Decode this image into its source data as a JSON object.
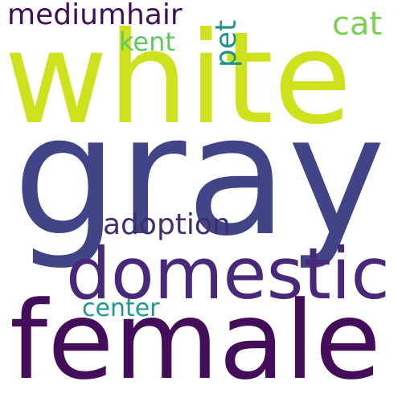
{
  "words": {
    "white": "white",
    "gray": "gray",
    "domestic": "domestic",
    "female": "female",
    "mediumhair": "mediumhair",
    "cat": "cat",
    "kent": "kent",
    "pet": "pet",
    "adoption": "adoption",
    "center": "center"
  },
  "colors": {
    "white": "#cde11d",
    "gray": "#414487",
    "domestic": "#482878",
    "female": "#440d59",
    "mediumhair": "#3e0f57",
    "cat": "#7ad151",
    "kent": "#5ec962",
    "pet": "#20928c",
    "adoption": "#3f2d70",
    "center": "#1f9a8a"
  }
}
